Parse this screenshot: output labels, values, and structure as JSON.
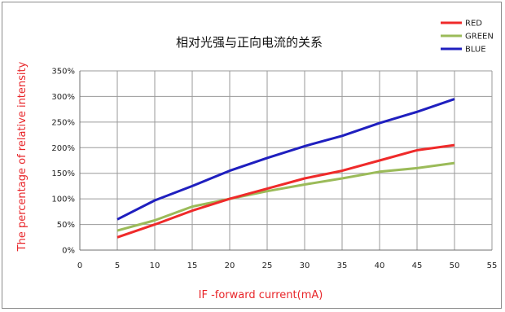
{
  "chart_data": {
    "type": "line",
    "title": "相对光强与正向电流的关系",
    "xlabel": "IF -forward current(mA)",
    "ylabel": "The percentage of relative intensity",
    "x_ticks": [
      "0",
      "5",
      "10",
      "15",
      "20",
      "25",
      "30",
      "35",
      "40",
      "45",
      "50",
      "55"
    ],
    "y_ticks": [
      "0%",
      "50%",
      "100%",
      "150%",
      "200%",
      "250%",
      "300%",
      "350%"
    ],
    "xlim": [
      0,
      55
    ],
    "ylim": [
      0,
      350
    ],
    "grid": true,
    "legend_position": "top-right",
    "x": [
      5,
      10,
      15,
      20,
      25,
      30,
      35,
      40,
      45,
      50
    ],
    "series": [
      {
        "name": "RED",
        "color": "#ef2a2a",
        "values": [
          25,
          50,
          77,
          100,
          120,
          140,
          155,
          175,
          195,
          205
        ]
      },
      {
        "name": "GREEN",
        "color": "#9bbb59",
        "values": [
          38,
          58,
          85,
          100,
          115,
          128,
          140,
          153,
          160,
          170
        ]
      },
      {
        "name": "BLUE",
        "color": "#1f1fbf",
        "values": [
          60,
          97,
          125,
          155,
          180,
          203,
          223,
          248,
          270,
          295
        ]
      }
    ]
  }
}
